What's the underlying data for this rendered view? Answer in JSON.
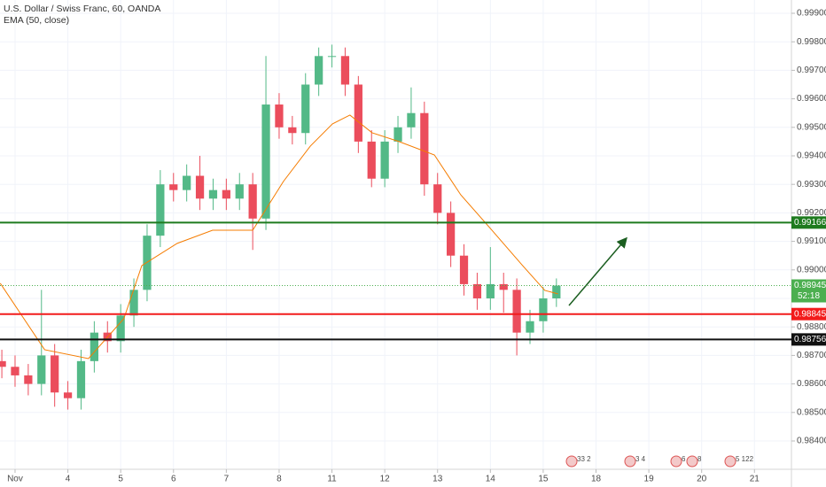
{
  "chart_data": {
    "type": "candlestick",
    "title": "U.S. Dollar / Swiss Franc, 60, OANDA",
    "subtitle": "EMA (50, close)",
    "x": [
      -0.25,
      0,
      0.25,
      0.5,
      0.75,
      1,
      1.25,
      1.5,
      1.75,
      2,
      2.25,
      2.5,
      2.75,
      3,
      3.25,
      3.5,
      3.75,
      4,
      4.25,
      4.5,
      4.75,
      5,
      5.25,
      5.5,
      5.75,
      6,
      6.25,
      6.5,
      6.75,
      7,
      7.25,
      7.5,
      7.75,
      8,
      8.25,
      8.5,
      8.75,
      9,
      9.25,
      9.5,
      9.75,
      10,
      10.25
    ],
    "open": [
      0.9868,
      0.9866,
      0.9863,
      0.986,
      0.987,
      0.9857,
      0.9855,
      0.9868,
      0.9878,
      0.9875,
      0.9884,
      0.9893,
      0.9912,
      0.993,
      0.9928,
      0.9933,
      0.9925,
      0.9928,
      0.9925,
      0.993,
      0.9918,
      0.9958,
      0.995,
      0.9948,
      0.9965,
      0.9975,
      0.9975,
      0.9965,
      0.9945,
      0.9932,
      0.9945,
      0.995,
      0.9955,
      0.993,
      0.992,
      0.9905,
      0.9895,
      0.989,
      0.9895,
      0.9893,
      0.9878,
      0.9882,
      0.989
    ],
    "high": [
      0.9872,
      0.987,
      0.9867,
      0.9893,
      0.9874,
      0.9861,
      0.9872,
      0.9882,
      0.9882,
      0.9888,
      0.9897,
      0.9916,
      0.9935,
      0.9934,
      0.9937,
      0.994,
      0.9932,
      0.9932,
      0.9934,
      0.9934,
      0.9975,
      0.9962,
      0.9954,
      0.9969,
      0.9978,
      0.9979,
      0.9978,
      0.9968,
      0.9949,
      0.9949,
      0.9954,
      0.9964,
      0.9959,
      0.9934,
      0.9924,
      0.9909,
      0.9899,
      0.9908,
      0.9899,
      0.9897,
      0.9886,
      0.9894,
      0.9897
    ],
    "low": [
      0.9862,
      0.9859,
      0.9856,
      0.9856,
      0.9852,
      0.9851,
      0.9851,
      0.9864,
      0.9871,
      0.9871,
      0.988,
      0.9889,
      0.9908,
      0.9924,
      0.9924,
      0.9921,
      0.9921,
      0.9921,
      0.9921,
      0.9907,
      0.9914,
      0.9946,
      0.9944,
      0.9944,
      0.9961,
      0.9971,
      0.9961,
      0.9941,
      0.9929,
      0.9929,
      0.9941,
      0.9946,
      0.9926,
      0.9916,
      0.9901,
      0.9891,
      0.9886,
      0.9886,
      0.9885,
      0.987,
      0.9874,
      0.9878,
      0.9887
    ],
    "close": [
      0.9866,
      0.9863,
      0.986,
      0.987,
      0.9857,
      0.9855,
      0.9868,
      0.9878,
      0.9875,
      0.9884,
      0.9893,
      0.9912,
      0.993,
      0.9928,
      0.9933,
      0.9925,
      0.9928,
      0.9925,
      0.993,
      0.9918,
      0.9958,
      0.995,
      0.9948,
      0.9965,
      0.9975,
      0.9975,
      0.9965,
      0.9945,
      0.9932,
      0.9945,
      0.995,
      0.9955,
      0.993,
      0.992,
      0.9905,
      0.9895,
      0.989,
      0.9895,
      0.9893,
      0.9878,
      0.9882,
      0.989,
      0.98945
    ],
    "up_color": "#53b987",
    "down_color": "#eb4d5c",
    "ema": {
      "color": "#f57c00",
      "x": [
        -0.28,
        0.56,
        1.39,
        2.06,
        2.4,
        3.07,
        3.74,
        4.5,
        5.08,
        5.59,
        6.01,
        6.34,
        6.76,
        7.27,
        7.94,
        8.44,
        9.03,
        9.61,
        10.03,
        10.28
      ],
      "values": [
        0.98953,
        0.9872,
        0.98689,
        0.98829,
        0.99015,
        0.99093,
        0.99139,
        0.99139,
        0.9931,
        0.99434,
        0.99512,
        0.99543,
        0.99481,
        0.9945,
        0.99403,
        0.99263,
        0.99139,
        0.99015,
        0.98928,
        0.98916
      ]
    },
    "levels": [
      {
        "value": 0.99166,
        "label": "0.99166",
        "color": "#1e7b1e"
      },
      {
        "value": 0.98845,
        "label": "0.98845",
        "color": "#f21b1b"
      },
      {
        "value": 0.98756,
        "label": "0.98756",
        "color": "#111111"
      }
    ],
    "last_price": {
      "value": 0.98945,
      "label": "0.98945",
      "color": "#4caf50"
    },
    "countdown": "52:18",
    "xlim": [
      -0.285,
      14.7
    ],
    "xticks": [
      {
        "value": 0,
        "label": "Nov"
      },
      {
        "value": 1,
        "label": "4"
      },
      {
        "value": 2,
        "label": "5"
      },
      {
        "value": 3,
        "label": "6"
      },
      {
        "value": 4,
        "label": "7"
      },
      {
        "value": 5,
        "label": "8"
      },
      {
        "value": 6,
        "label": "11"
      },
      {
        "value": 7,
        "label": "12"
      },
      {
        "value": 8,
        "label": "13"
      },
      {
        "value": 9,
        "label": "14"
      },
      {
        "value": 10,
        "label": "15"
      },
      {
        "value": 11,
        "label": "18"
      },
      {
        "value": 12,
        "label": "19"
      },
      {
        "value": 13,
        "label": "20"
      },
      {
        "value": 14,
        "label": "21"
      }
    ],
    "ylim": [
      0.983006,
      0.999466
    ],
    "yticks": [
      {
        "value": 0.984,
        "label": "0.98400"
      },
      {
        "value": 0.985,
        "label": "0.98500"
      },
      {
        "value": 0.986,
        "label": "0.98600"
      },
      {
        "value": 0.987,
        "label": "0.98700"
      },
      {
        "value": 0.988,
        "label": "0.98800"
      },
      {
        "value": 0.989,
        "label": "0.98900"
      },
      {
        "value": 0.99,
        "label": "0.99000"
      },
      {
        "value": 0.991,
        "label": "0.99100"
      },
      {
        "value": 0.992,
        "label": "0.99200"
      },
      {
        "value": 0.993,
        "label": "0.99300"
      },
      {
        "value": 0.994,
        "label": "0.99400"
      },
      {
        "value": 0.995,
        "label": "0.99500"
      },
      {
        "value": 0.996,
        "label": "0.99600"
      },
      {
        "value": 0.997,
        "label": "0.99700"
      },
      {
        "value": 0.998,
        "label": "0.99800"
      },
      {
        "value": 0.999,
        "label": "0.99900"
      }
    ],
    "grid": true,
    "events": [
      "33 2",
      "3 4",
      "6",
      "8",
      "5 122"
    ]
  }
}
